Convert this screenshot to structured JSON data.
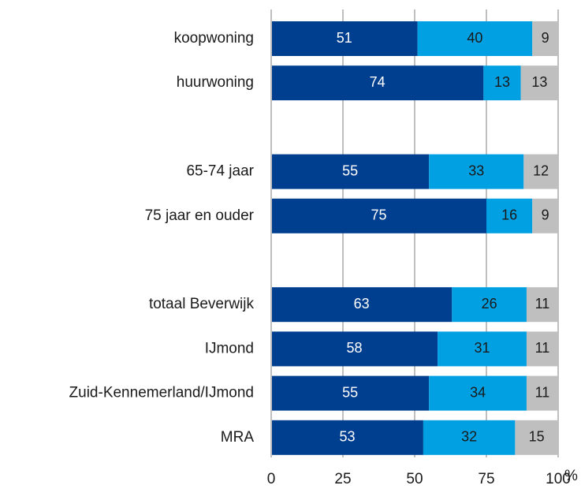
{
  "chart_data": {
    "type": "stacked_bar_horizontal",
    "categories": [
      "koopwoning",
      "huurwoning",
      null,
      "65-74 jaar",
      "75 jaar en ouder",
      null,
      "totaal Beverwijk",
      "IJmond",
      "Zuid-Kennemerland/IJmond",
      "MRA"
    ],
    "series": [
      {
        "color": "#003f8f",
        "values": [
          51,
          74,
          null,
          55,
          75,
          null,
          63,
          58,
          55,
          53
        ]
      },
      {
        "color": "#00a0e3",
        "values": [
          40,
          13,
          null,
          33,
          16,
          null,
          26,
          31,
          34,
          32
        ]
      },
      {
        "color": "#bfbfbf",
        "values": [
          9,
          13,
          null,
          12,
          9,
          null,
          11,
          11,
          11,
          15
        ]
      }
    ],
    "xlim": [
      0,
      100
    ],
    "xticks": [
      0,
      25,
      50,
      75,
      100
    ],
    "x_label": "%",
    "grid": true
  }
}
